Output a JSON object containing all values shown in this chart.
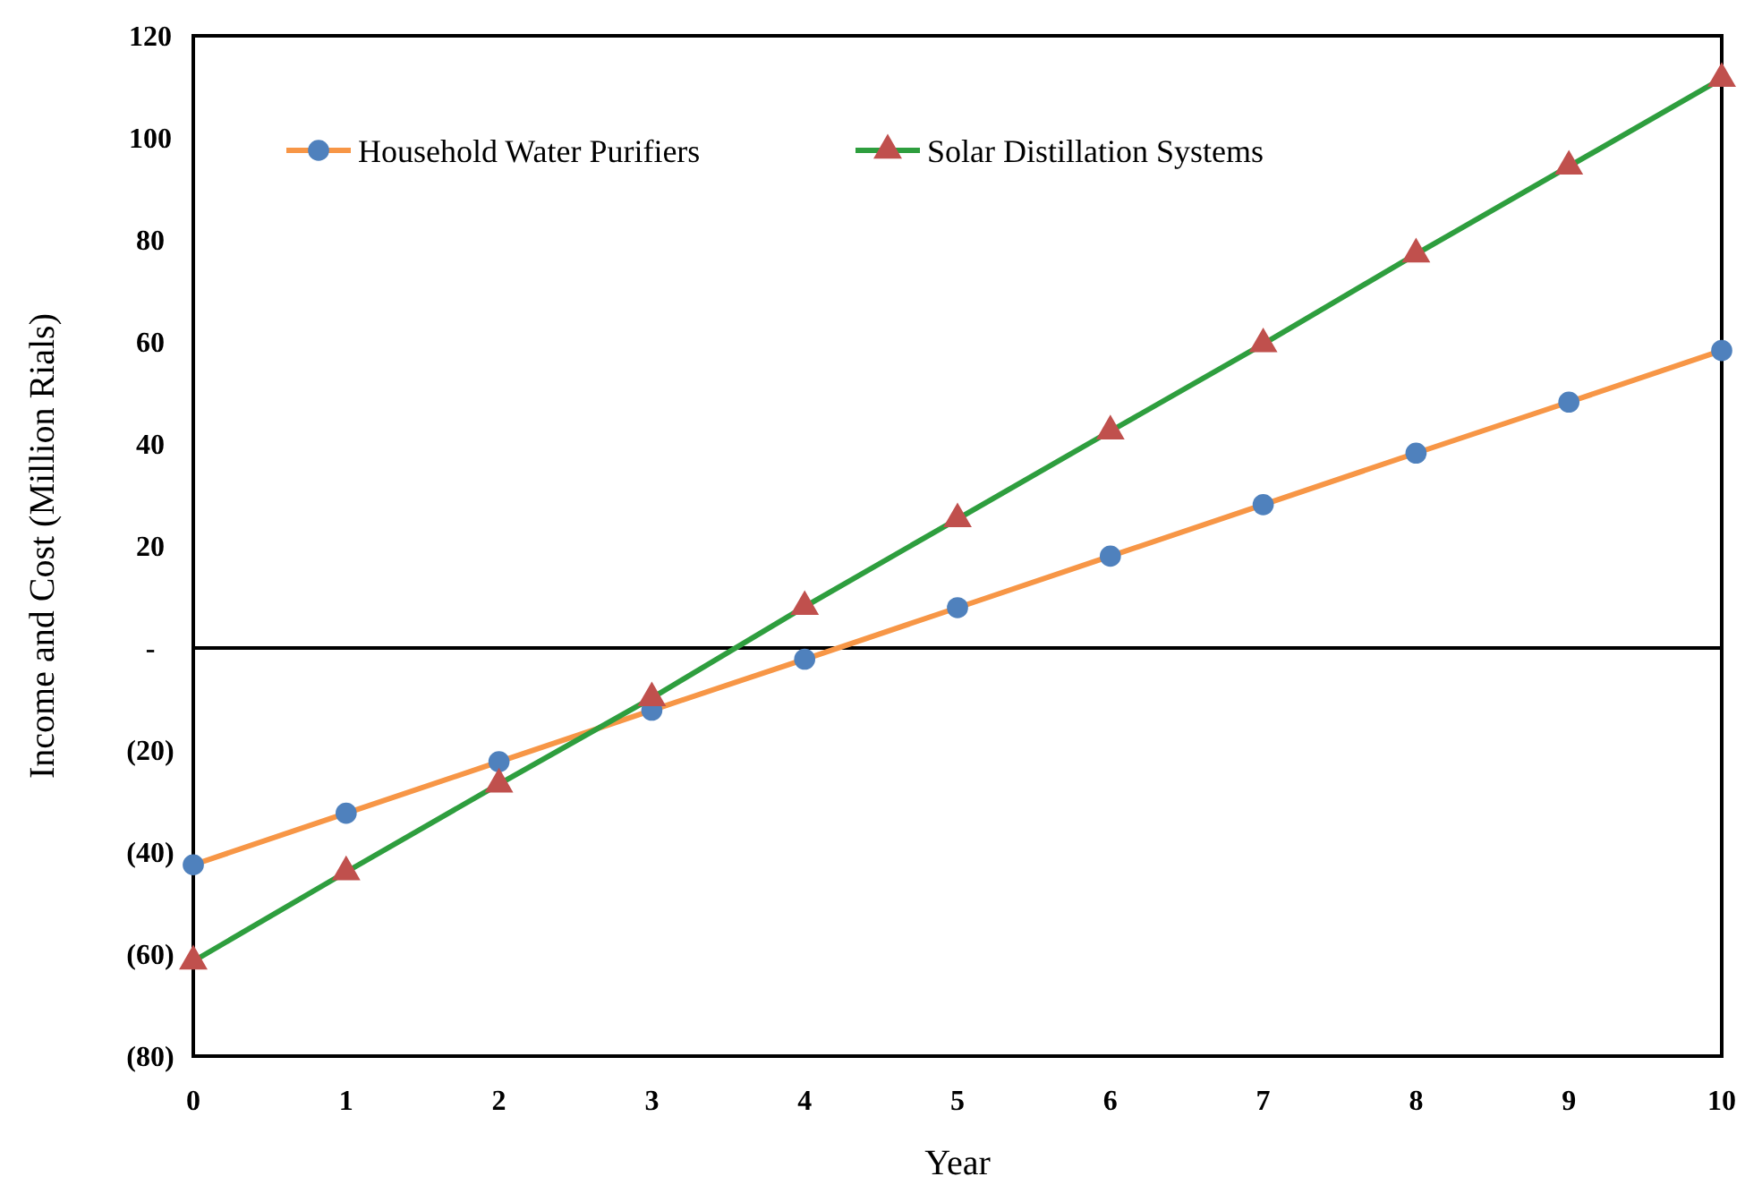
{
  "chart_data": {
    "type": "line",
    "xlabel": "Year",
    "ylabel": "Income and Cost (Million Rials)",
    "x": [
      0,
      1,
      2,
      3,
      4,
      5,
      6,
      7,
      8,
      9,
      10
    ],
    "xlim": [
      0,
      10
    ],
    "xticks": [
      0,
      1,
      2,
      3,
      4,
      5,
      6,
      7,
      8,
      9,
      10
    ],
    "ylim": [
      -80,
      120
    ],
    "yticks": [
      {
        "value": -80,
        "label": "(80)"
      },
      {
        "value": -60,
        "label": "(60)"
      },
      {
        "value": -40,
        "label": "(40)"
      },
      {
        "value": -20,
        "label": "(20)"
      },
      {
        "value": 0,
        "label": "-"
      },
      20,
      40,
      60,
      80,
      100,
      120
    ],
    "ref_lines": [
      {
        "axis": "y",
        "value": 0,
        "color": "#000000"
      }
    ],
    "legend": "top left",
    "series": [
      {
        "name": "Household Water Purifiers",
        "color": "#f79646",
        "marker": "circle",
        "colors": [
          "#4f81bd",
          "#4f81bd",
          "#4f81bd",
          "#4f81bd",
          "#4f81bd",
          "#4f81bd",
          "#4f81bd",
          "#4f81bd",
          "#4f81bd",
          "#4f81bd",
          "#4f81bd"
        ],
        "values": [
          -42.5,
          -32.4,
          -22.3,
          -12.2,
          -2.2,
          7.9,
          18,
          28.1,
          38.2,
          48.2,
          58.3
        ]
      },
      {
        "name": "Solar Distillation Systems",
        "color": "#2e9e3e",
        "marker": "triangle",
        "line_style": "solid",
        "colors": [
          "#c0504d",
          "#c0504d",
          "#c0504d",
          "#c0504d",
          "#c0504d",
          "#c0504d",
          "#c0504d",
          "#c0504d",
          "#c0504d",
          "#c0504d",
          "#c0504d"
        ],
        "values": [
          -61.4,
          -43.9,
          -26.7,
          -9.8,
          8.1,
          25.3,
          42.5,
          59.6,
          77.2,
          94.4,
          111.6
        ]
      }
    ]
  }
}
